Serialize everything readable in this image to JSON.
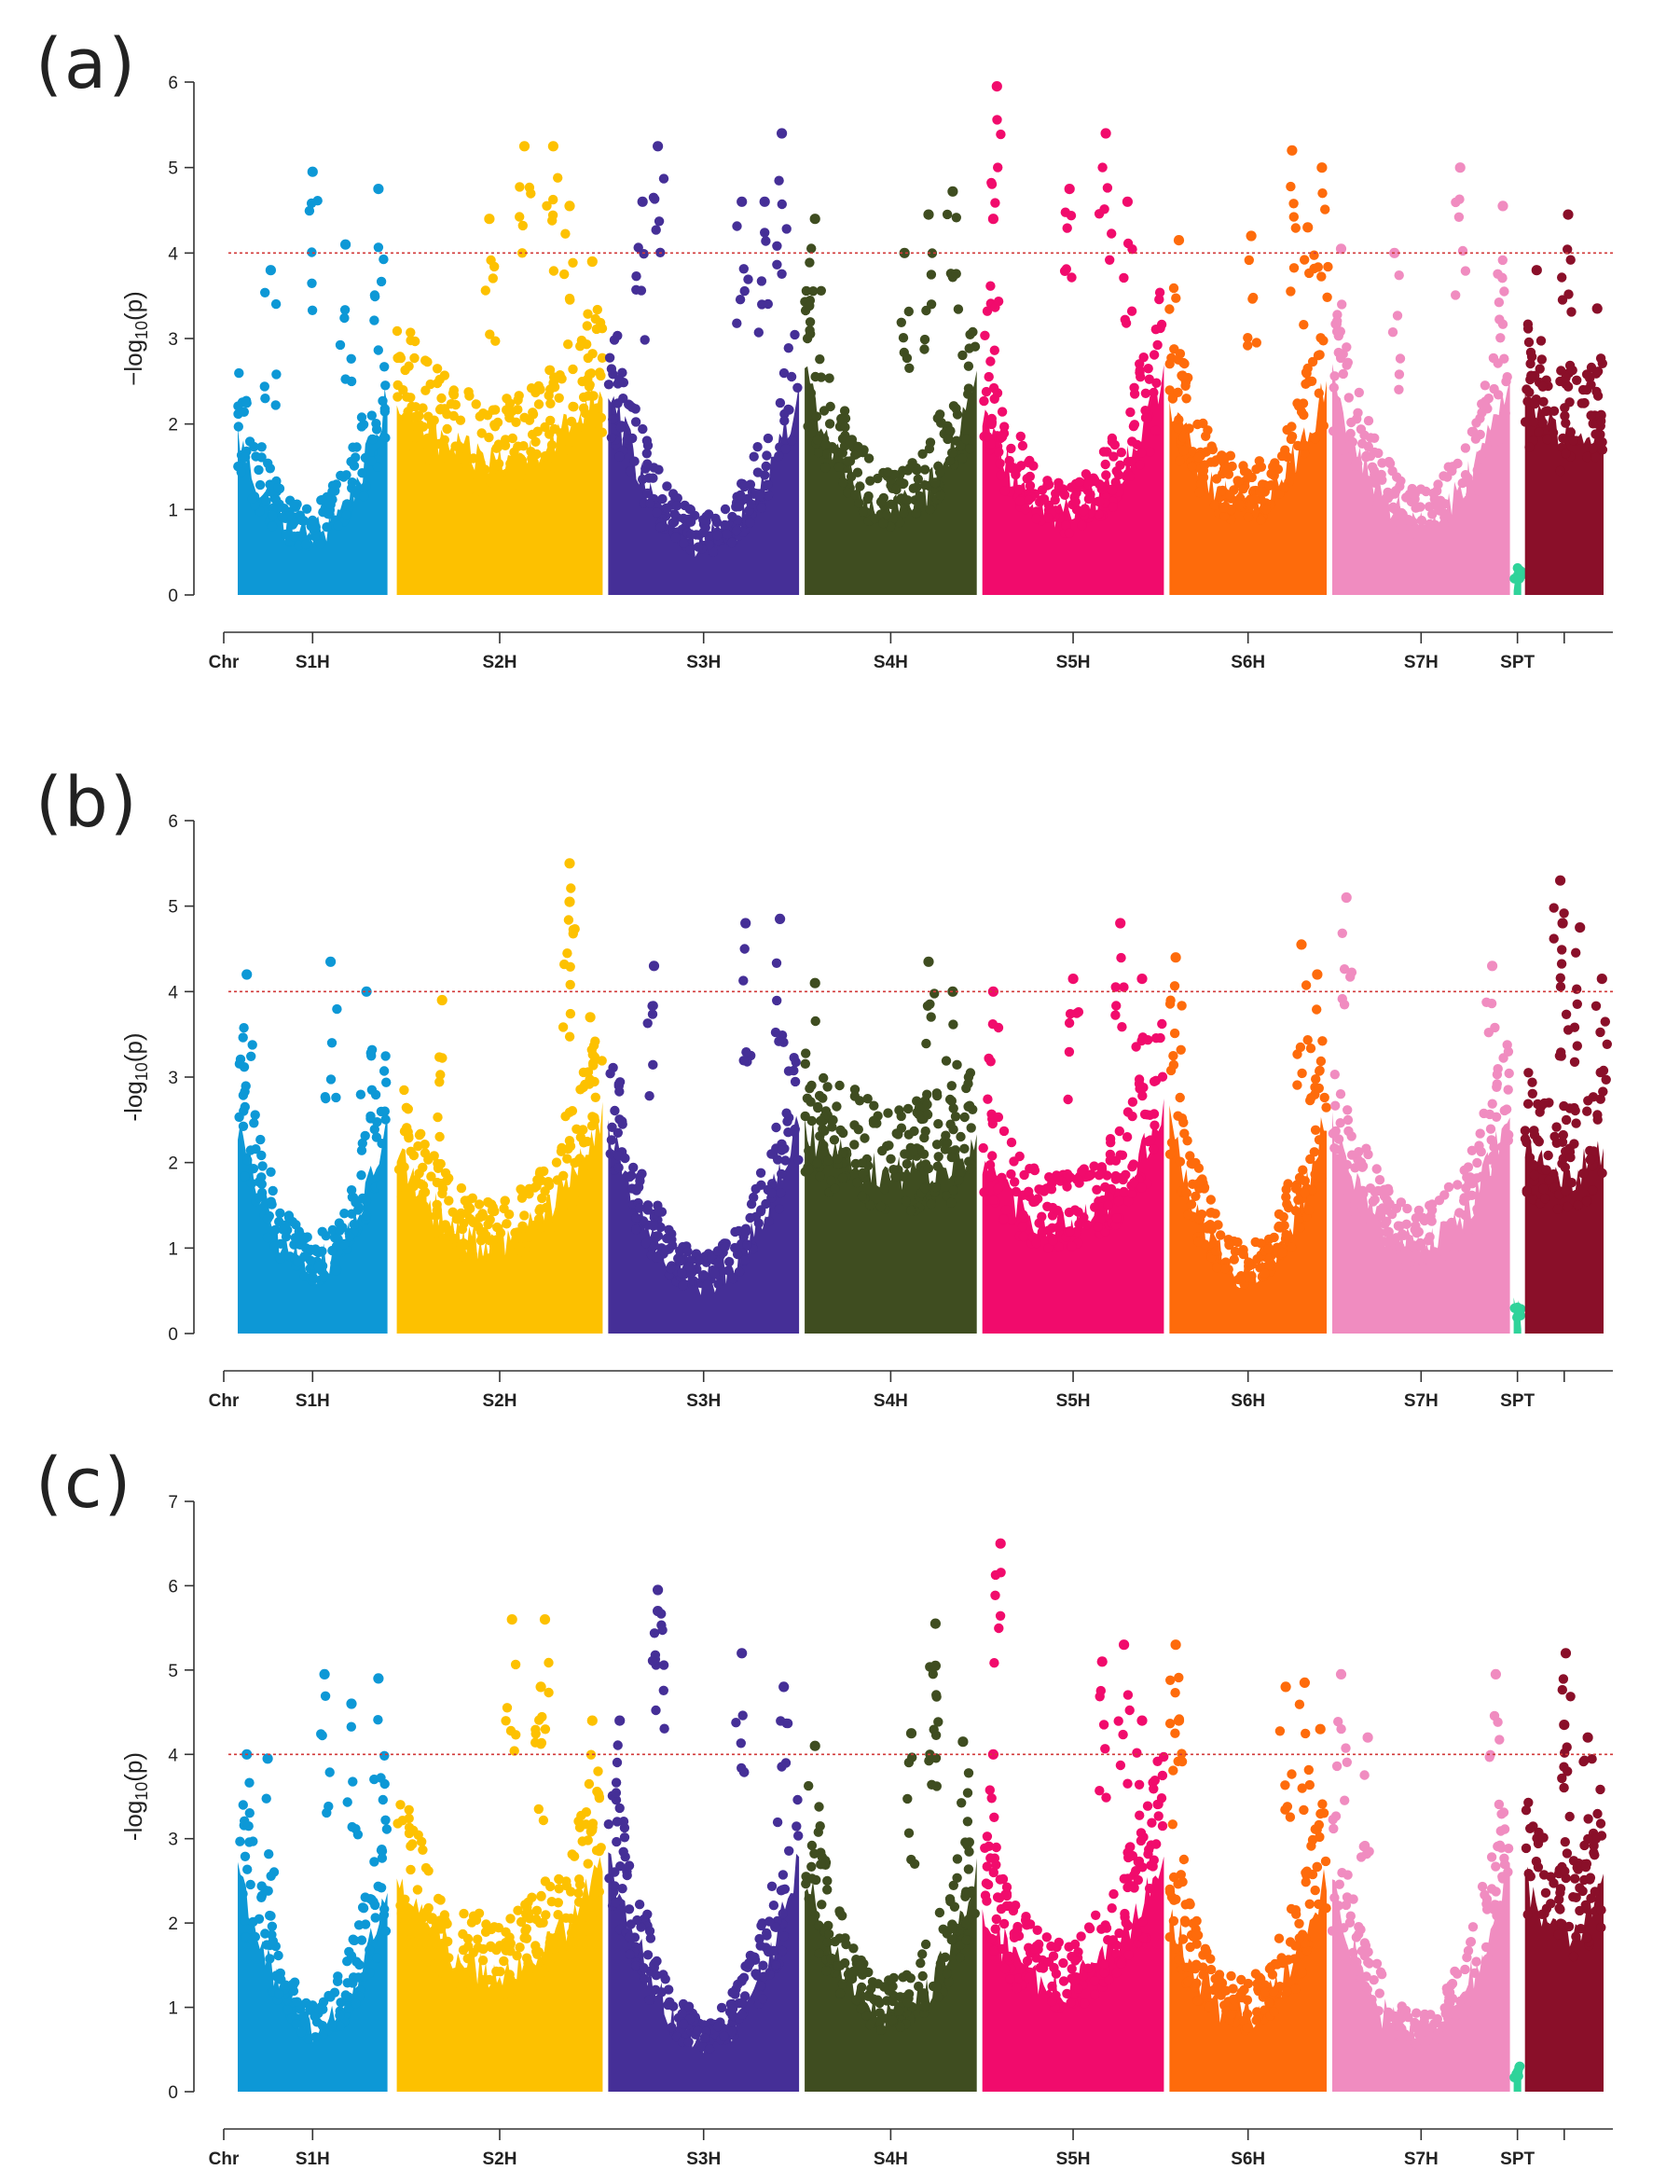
{
  "chart_data": [
    {
      "type": "scatter",
      "panel_label": "(a)",
      "ylabel_main": "−log",
      "ylabel_sub": "10",
      "ylabel_tail": "(p)",
      "ylim": [
        0,
        6
      ],
      "yticks": [
        "0",
        "1",
        "2",
        "3",
        "4",
        "5",
        "6"
      ],
      "threshold": 4,
      "chromosomes": [
        {
          "name": "S1H",
          "color": "#0d98d6",
          "start": 0.0,
          "end": 0.8,
          "base": [
            2.6,
            1.0,
            3.2
          ],
          "peaks": [
            [
              0.22,
              3.8
            ],
            [
              0.5,
              4.95
            ],
            [
              0.72,
              4.1
            ],
            [
              0.94,
              4.75
            ]
          ]
        },
        {
          "name": "S2H",
          "color": "#fdc100",
          "start": 0.85,
          "end": 1.95,
          "base": [
            3.2,
            2.2,
            3.4
          ],
          "peaks": [
            [
              0.45,
              4.4
            ],
            [
              0.62,
              5.25
            ],
            [
              0.76,
              5.25
            ],
            [
              0.84,
              4.55
            ],
            [
              0.95,
              3.9
            ]
          ]
        },
        {
          "name": "S3H",
          "color": "#452f97",
          "start": 1.98,
          "end": 3.0,
          "base": [
            3.4,
            0.9,
            3.3
          ],
          "peaks": [
            [
              0.18,
              4.6
            ],
            [
              0.26,
              5.25
            ],
            [
              0.7,
              4.6
            ],
            [
              0.82,
              4.6
            ],
            [
              0.91,
              5.4
            ]
          ]
        },
        {
          "name": "S4H",
          "color": "#3f4d20",
          "start": 3.03,
          "end": 3.95,
          "base": [
            3.6,
            1.4,
            3.4
          ],
          "peaks": [
            [
              0.06,
              4.4
            ],
            [
              0.58,
              4.0
            ],
            [
              0.72,
              4.45
            ],
            [
              0.86,
              4.72
            ]
          ]
        },
        {
          "name": "S5H",
          "color": "#f10b6c",
          "start": 3.98,
          "end": 4.95,
          "base": [
            3.0,
            1.3,
            3.6
          ],
          "peaks": [
            [
              0.06,
              4.4
            ],
            [
              0.08,
              5.95
            ],
            [
              0.48,
              4.75
            ],
            [
              0.68,
              5.4
            ],
            [
              0.8,
              4.6
            ]
          ]
        },
        {
          "name": "S6H",
          "color": "#fe6b0b",
          "start": 4.98,
          "end": 5.82,
          "base": [
            3.2,
            1.5,
            3.4
          ],
          "peaks": [
            [
              0.06,
              4.15
            ],
            [
              0.52,
              4.2
            ],
            [
              0.78,
              5.2
            ],
            [
              0.88,
              4.3
            ],
            [
              0.97,
              5.0
            ]
          ]
        },
        {
          "name": "S7H",
          "color": "#f08cc0",
          "start": 5.85,
          "end": 6.8,
          "base": [
            3.5,
            1.2,
            3.6
          ],
          "peaks": [
            [
              0.05,
              4.05
            ],
            [
              0.35,
              4.0
            ],
            [
              0.72,
              5.0
            ],
            [
              0.96,
              4.55
            ]
          ]
        },
        {
          "name": "SPT",
          "color": "#2fd39a",
          "start": 6.82,
          "end": 6.86,
          "base": [
            0.3,
            0.3,
            0.3
          ],
          "peaks": []
        },
        {
          "name": "",
          "color": "#8a0f29",
          "start": 6.88,
          "end": 7.3,
          "base": [
            3.2,
            2.6,
            2.8
          ],
          "peaks": [
            [
              0.15,
              3.8
            ],
            [
              0.55,
              4.45
            ],
            [
              0.92,
              3.35
            ]
          ]
        }
      ]
    },
    {
      "type": "scatter",
      "panel_label": "(b)",
      "ylabel_main": "-log",
      "ylabel_sub": "10",
      "ylabel_tail": "(p)",
      "ylim": [
        0,
        6
      ],
      "yticks": [
        "0",
        "1",
        "2",
        "3",
        "4",
        "5",
        "6"
      ],
      "threshold": 4,
      "chromosomes": [
        {
          "name": "S1H",
          "color": "#0d98d6",
          "start": 0.0,
          "end": 0.8,
          "base": [
            3.4,
            1.1,
            3.4
          ],
          "peaks": [
            [
              0.06,
              4.2
            ],
            [
              0.62,
              4.35
            ],
            [
              0.86,
              4.0
            ]
          ]
        },
        {
          "name": "S2H",
          "color": "#fdc100",
          "start": 0.85,
          "end": 1.95,
          "base": [
            3.0,
            1.5,
            3.6
          ],
          "peaks": [
            [
              0.22,
              3.9
            ],
            [
              0.84,
              5.5
            ],
            [
              0.84,
              5.05
            ],
            [
              0.94,
              3.7
            ]
          ]
        },
        {
          "name": "S3H",
          "color": "#452f97",
          "start": 1.98,
          "end": 3.0,
          "base": [
            3.4,
            0.9,
            3.5
          ],
          "peaks": [
            [
              0.24,
              4.3
            ],
            [
              0.72,
              4.8
            ],
            [
              0.9,
              4.85
            ]
          ]
        },
        {
          "name": "S4H",
          "color": "#3f4d20",
          "start": 3.03,
          "end": 3.95,
          "base": [
            3.3,
            2.6,
            3.0
          ],
          "peaks": [
            [
              0.06,
              4.1
            ],
            [
              0.72,
              4.35
            ],
            [
              0.86,
              4.0
            ]
          ]
        },
        {
          "name": "S5H",
          "color": "#f10b6c",
          "start": 3.98,
          "end": 4.95,
          "base": [
            2.8,
            1.8,
            3.6
          ],
          "peaks": [
            [
              0.06,
              4.0
            ],
            [
              0.5,
              4.15
            ],
            [
              0.76,
              4.8
            ],
            [
              0.88,
              4.15
            ]
          ]
        },
        {
          "name": "S6H",
          "color": "#fe6b0b",
          "start": 4.98,
          "end": 5.82,
          "base": [
            3.4,
            1.0,
            3.6
          ],
          "peaks": [
            [
              0.04,
              4.4
            ],
            [
              0.84,
              4.55
            ],
            [
              0.94,
              4.2
            ]
          ]
        },
        {
          "name": "S7H",
          "color": "#f08cc0",
          "start": 5.85,
          "end": 6.8,
          "base": [
            3.3,
            1.4,
            3.6
          ],
          "peaks": [
            [
              0.08,
              5.1
            ],
            [
              0.9,
              4.3
            ]
          ]
        },
        {
          "name": "SPT",
          "color": "#2fd39a",
          "start": 6.82,
          "end": 6.86,
          "base": [
            0.3,
            0.3,
            0.3
          ],
          "peaks": []
        },
        {
          "name": "",
          "color": "#8a0f29",
          "start": 6.88,
          "end": 7.3,
          "base": [
            3.0,
            2.6,
            3.0
          ],
          "peaks": [
            [
              0.45,
              5.3
            ],
            [
              0.48,
              4.8
            ],
            [
              0.7,
              4.75
            ],
            [
              0.98,
              4.15
            ]
          ]
        }
      ]
    },
    {
      "type": "scatter",
      "panel_label": "(c)",
      "ylabel_main": "-log",
      "ylabel_sub": "10",
      "ylabel_tail": "(p)",
      "ylim": [
        0,
        7
      ],
      "yticks": [
        "0",
        "1",
        "2",
        "3",
        "4",
        "5",
        "6",
        "7"
      ],
      "threshold": 4,
      "chromosomes": [
        {
          "name": "S1H",
          "color": "#0d98d6",
          "start": 0.0,
          "end": 0.8,
          "base": [
            3.8,
            1.1,
            3.4
          ],
          "peaks": [
            [
              0.06,
              4.0
            ],
            [
              0.2,
              3.95
            ],
            [
              0.58,
              4.95
            ],
            [
              0.76,
              4.6
            ],
            [
              0.94,
              4.9
            ]
          ]
        },
        {
          "name": "S2H",
          "color": "#fdc100",
          "start": 0.85,
          "end": 1.95,
          "base": [
            3.6,
            2.0,
            3.8
          ],
          "peaks": [
            [
              0.56,
              5.6
            ],
            [
              0.72,
              5.6
            ],
            [
              0.7,
              4.8
            ],
            [
              0.95,
              4.4
            ]
          ]
        },
        {
          "name": "S3H",
          "color": "#452f97",
          "start": 1.98,
          "end": 3.0,
          "base": [
            4.0,
            0.9,
            3.8
          ],
          "peaks": [
            [
              0.06,
              4.4
            ],
            [
              0.26,
              5.95
            ],
            [
              0.26,
              5.7
            ],
            [
              0.7,
              5.2
            ],
            [
              0.92,
              4.8
            ]
          ]
        },
        {
          "name": "S4H",
          "color": "#3f4d20",
          "start": 3.03,
          "end": 3.95,
          "base": [
            3.6,
            1.3,
            3.6
          ],
          "peaks": [
            [
              0.06,
              4.1
            ],
            [
              0.62,
              4.25
            ],
            [
              0.76,
              5.55
            ],
            [
              0.76,
              5.05
            ],
            [
              0.92,
              4.15
            ]
          ]
        },
        {
          "name": "S5H",
          "color": "#f10b6c",
          "start": 3.98,
          "end": 4.95,
          "base": [
            3.0,
            1.8,
            4.0
          ],
          "peaks": [
            [
              0.06,
              4.0
            ],
            [
              0.1,
              6.5
            ],
            [
              0.66,
              5.1
            ],
            [
              0.78,
              5.3
            ],
            [
              0.88,
              4.4
            ]
          ]
        },
        {
          "name": "S6H",
          "color": "#fe6b0b",
          "start": 4.98,
          "end": 5.82,
          "base": [
            3.0,
            1.3,
            3.6
          ],
          "peaks": [
            [
              0.04,
              5.3
            ],
            [
              0.06,
              4.4
            ],
            [
              0.74,
              4.8
            ],
            [
              0.86,
              4.85
            ],
            [
              0.96,
              4.3
            ]
          ]
        },
        {
          "name": "S7H",
          "color": "#f08cc0",
          "start": 5.85,
          "end": 6.8,
          "base": [
            3.4,
            0.9,
            3.8
          ],
          "peaks": [
            [
              0.05,
              4.95
            ],
            [
              0.2,
              4.2
            ],
            [
              0.92,
              4.95
            ]
          ]
        },
        {
          "name": "SPT",
          "color": "#2fd39a",
          "start": 6.82,
          "end": 6.86,
          "base": [
            0.3,
            0.3,
            0.3
          ],
          "peaks": []
        },
        {
          "name": "",
          "color": "#8a0f29",
          "start": 6.88,
          "end": 7.3,
          "base": [
            3.6,
            2.6,
            3.6
          ],
          "peaks": [
            [
              0.52,
              5.2
            ],
            [
              0.5,
              4.35
            ],
            [
              0.8,
              4.2
            ]
          ]
        }
      ]
    }
  ],
  "x_axis": {
    "chr_label": "Chr",
    "xlim": [
      -0.05,
      7.35
    ]
  }
}
